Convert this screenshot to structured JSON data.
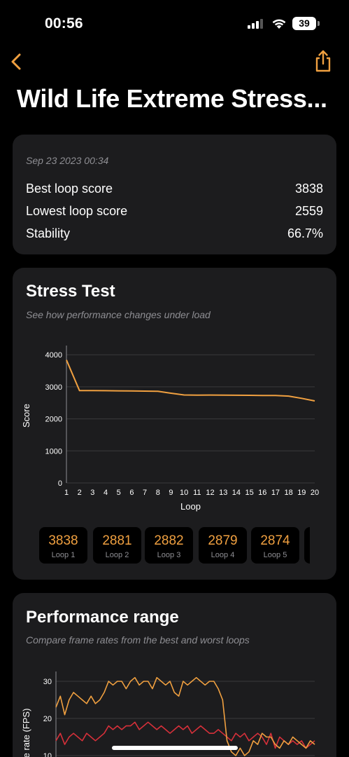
{
  "status_bar": {
    "time": "00:56",
    "battery": "39"
  },
  "header": {
    "title": "Wild Life Extreme Stress..."
  },
  "summary": {
    "date": "Sep 23 2023 00:34",
    "rows": [
      {
        "label": "Best loop score",
        "value": "3838"
      },
      {
        "label": "Lowest loop score",
        "value": "2559"
      },
      {
        "label": "Stability",
        "value": "66.7%"
      }
    ]
  },
  "stress_test": {
    "title": "Stress Test",
    "subtitle": "See how performance changes under load",
    "loops": [
      {
        "score": "3838",
        "label": "Loop 1"
      },
      {
        "score": "2881",
        "label": "Loop 2"
      },
      {
        "score": "2882",
        "label": "Loop 3"
      },
      {
        "score": "2879",
        "label": "Loop 4"
      },
      {
        "score": "2874",
        "label": "Loop 5"
      }
    ]
  },
  "performance_range": {
    "title": "Performance range",
    "subtitle": "Compare frame rates from the best and worst loops"
  },
  "colors": {
    "accent": "#f0a040",
    "worst": "#d6303a",
    "card": "#1c1c1e"
  },
  "chart_data": [
    {
      "type": "line",
      "x": [
        1,
        2,
        3,
        4,
        5,
        6,
        7,
        8,
        9,
        10,
        11,
        12,
        13,
        14,
        15,
        16,
        17,
        18,
        19,
        20
      ],
      "values": [
        3838,
        2881,
        2882,
        2879,
        2874,
        2870,
        2865,
        2860,
        2800,
        2745,
        2740,
        2742,
        2740,
        2738,
        2735,
        2730,
        2728,
        2710,
        2640,
        2559
      ],
      "xlabel": "Loop",
      "ylabel": "Score",
      "yticks": [
        0,
        1000,
        2000,
        3000,
        4000
      ],
      "ylim": [
        0,
        4200
      ],
      "xlim": [
        1,
        20
      ],
      "grid": true
    },
    {
      "type": "line",
      "ylabel": "e rate (FPS)",
      "yticks": [
        10,
        20,
        30
      ],
      "ylim": [
        10,
        33
      ],
      "grid": true,
      "series": [
        {
          "values": [
            23,
            26,
            21,
            25,
            27,
            26,
            25,
            24,
            26,
            24,
            25,
            27,
            30,
            29,
            30,
            30,
            28,
            30,
            31,
            29,
            30,
            30,
            28,
            31,
            30,
            29,
            30,
            27,
            26,
            30,
            29,
            30,
            31,
            30,
            29,
            30,
            30,
            28,
            25,
            14,
            11,
            10,
            12,
            10,
            11,
            14,
            13,
            16,
            15,
            15,
            13,
            12,
            14,
            13,
            15,
            14,
            13,
            12,
            14,
            13
          ]
        },
        {
          "values": [
            14,
            16,
            13,
            15,
            16,
            15,
            14,
            16,
            15,
            14,
            15,
            16,
            18,
            17,
            18,
            17,
            18,
            18,
            19,
            17,
            18,
            19,
            18,
            17,
            18,
            17,
            16,
            17,
            18,
            17,
            18,
            16,
            17,
            18,
            17,
            16,
            16,
            17,
            16,
            15,
            14,
            16,
            15,
            16,
            14,
            15,
            16,
            15,
            13,
            16,
            12,
            15,
            14,
            13,
            14,
            13,
            14,
            12,
            13,
            14
          ]
        }
      ]
    }
  ]
}
